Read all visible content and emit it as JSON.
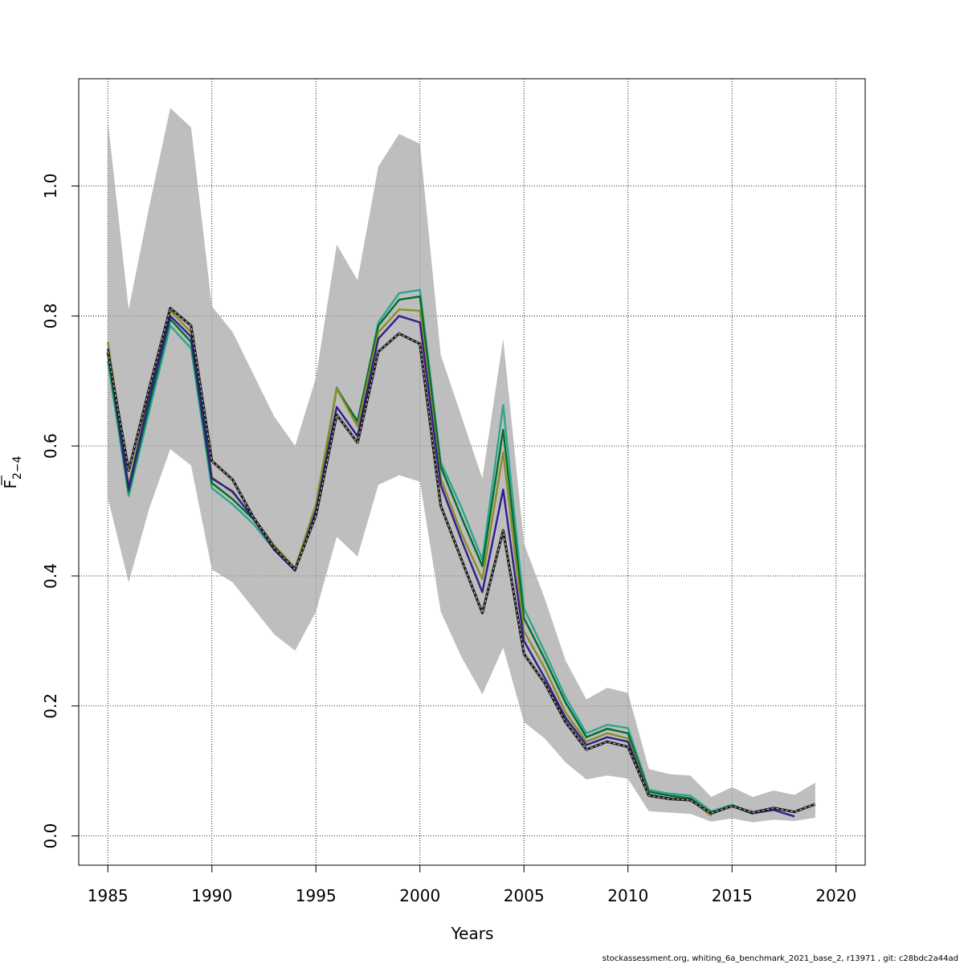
{
  "chart_data": {
    "type": "line",
    "xlabel": "Years",
    "ylabel_main": "F",
    "ylabel_sub": "2−4",
    "xlim": [
      1983.6,
      2021.4
    ],
    "ylim": [
      -0.045,
      1.165
    ],
    "x_ticks": [
      "1985",
      "1990",
      "1995",
      "2000",
      "2005",
      "2010",
      "2015",
      "2020"
    ],
    "y_ticks": [
      "0.0",
      "0.2",
      "0.4",
      "0.6",
      "0.8",
      "1.0"
    ],
    "grid": true,
    "band": {
      "x": [
        1985,
        1986,
        1987,
        1988,
        1989,
        1990,
        1991,
        1992,
        1993,
        1994,
        1995,
        1996,
        1997,
        1998,
        1999,
        2000,
        2001,
        2002,
        2003,
        2004,
        2005,
        2006,
        2007,
        2008,
        2009,
        2010,
        2011,
        2012,
        2013,
        2014,
        2015,
        2016,
        2017,
        2018,
        2019
      ],
      "upper": [
        1.1,
        0.81,
        0.97,
        1.12,
        1.09,
        0.815,
        0.775,
        0.71,
        0.645,
        0.6,
        0.705,
        0.91,
        0.855,
        1.03,
        1.08,
        1.065,
        0.74,
        0.645,
        0.55,
        0.765,
        0.45,
        0.365,
        0.27,
        0.21,
        0.228,
        0.22,
        0.103,
        0.095,
        0.093,
        0.06,
        0.075,
        0.06,
        0.07,
        0.063,
        0.082
      ],
      "lower": [
        0.52,
        0.39,
        0.505,
        0.595,
        0.57,
        0.41,
        0.39,
        0.35,
        0.31,
        0.285,
        0.345,
        0.46,
        0.43,
        0.54,
        0.555,
        0.545,
        0.345,
        0.275,
        0.218,
        0.29,
        0.175,
        0.15,
        0.113,
        0.087,
        0.093,
        0.088,
        0.038,
        0.036,
        0.034,
        0.022,
        0.027,
        0.021,
        0.025,
        0.023,
        0.028
      ],
      "color": "#bebebe"
    },
    "series": [
      {
        "color": "#2ca58d",
        "x": [
          1985,
          1986,
          1987,
          1988,
          1989,
          1990,
          1991,
          1992,
          1993,
          1994,
          1995,
          1996,
          1997,
          1998,
          1999,
          2000,
          2001,
          2002,
          2003,
          2004,
          2005,
          2006,
          2007,
          2008,
          2009,
          2010,
          2011,
          2012,
          2013,
          2014,
          2015,
          2016,
          2017
        ],
        "values": [
          0.73,
          0.523,
          0.655,
          0.785,
          0.75,
          0.535,
          0.51,
          0.48,
          0.44,
          0.41,
          0.5,
          0.69,
          0.635,
          0.79,
          0.835,
          0.84,
          0.575,
          0.505,
          0.425,
          0.663,
          0.35,
          0.283,
          0.213,
          0.158,
          0.171,
          0.166,
          0.071,
          0.065,
          0.062,
          0.038,
          0.048,
          0.035,
          0.04
        ],
        "dashed": false
      },
      {
        "color": "#006d2c",
        "x": [
          1985,
          1986,
          1987,
          1988,
          1989,
          1990,
          1991,
          1992,
          1993,
          1994,
          1995,
          1996,
          1997,
          1998,
          1999,
          2000,
          2001,
          2002,
          2003,
          2004,
          2005,
          2006,
          2007,
          2008,
          2009,
          2010,
          2011,
          2012,
          2013,
          2014,
          2015,
          2016
        ],
        "values": [
          0.742,
          0.53,
          0.665,
          0.795,
          0.76,
          0.543,
          0.518,
          0.487,
          0.443,
          0.41,
          0.505,
          0.688,
          0.638,
          0.785,
          0.825,
          0.83,
          0.568,
          0.49,
          0.415,
          0.625,
          0.335,
          0.272,
          0.205,
          0.152,
          0.165,
          0.158,
          0.068,
          0.062,
          0.058,
          0.034,
          0.046,
          0.034
        ],
        "dashed": false
      },
      {
        "color": "#8c8c2a",
        "x": [
          1985,
          1986,
          1987,
          1988,
          1989,
          1990,
          1991,
          1992,
          1993,
          1994,
          1995,
          1996,
          1997,
          1998,
          1999,
          2000,
          2001,
          2002,
          2003,
          2004,
          2005,
          2006,
          2007,
          2008,
          2009,
          2010,
          2011,
          2012,
          2013,
          2014
        ],
        "values": [
          0.76,
          0.54,
          0.68,
          0.808,
          0.775,
          0.552,
          0.528,
          0.49,
          0.447,
          0.412,
          0.51,
          0.688,
          0.63,
          0.775,
          0.81,
          0.808,
          0.55,
          0.465,
          0.395,
          0.59,
          0.315,
          0.258,
          0.19,
          0.145,
          0.158,
          0.15,
          0.064,
          0.058,
          0.056,
          0.031
        ],
        "dashed": false
      },
      {
        "color": "#2e1e8c",
        "x": [
          1985,
          1986,
          1987,
          1988,
          1989,
          1990,
          1991,
          1992,
          1993,
          1994,
          1995,
          1996,
          1997,
          1998,
          1999,
          2000,
          2001,
          2002,
          2003,
          2004,
          2005,
          2006,
          2007,
          2008,
          2009,
          2010,
          2011,
          2012,
          2013,
          2014,
          2015,
          2016,
          2017,
          2018
        ],
        "values": [
          0.75,
          0.535,
          0.675,
          0.8,
          0.768,
          0.55,
          0.53,
          0.488,
          0.44,
          0.408,
          0.5,
          0.66,
          0.615,
          0.765,
          0.8,
          0.79,
          0.54,
          0.455,
          0.375,
          0.533,
          0.3,
          0.243,
          0.182,
          0.14,
          0.152,
          0.145,
          0.063,
          0.058,
          0.055,
          0.035,
          0.046,
          0.035,
          0.04,
          0.03
        ],
        "dashed": false
      },
      {
        "color": "#1a1a1a",
        "x": [
          1985,
          1986,
          1987,
          1988,
          1989,
          1990,
          1991,
          1992,
          1993,
          1994,
          1995,
          1996,
          1997,
          1998,
          1999,
          2000,
          2001,
          2002,
          2003,
          2004,
          2005,
          2006,
          2007,
          2008,
          2009,
          2010,
          2011,
          2012,
          2013,
          2014,
          2015,
          2016,
          2017,
          2018,
          2019
        ],
        "values": [
          0.745,
          0.562,
          0.69,
          0.812,
          0.785,
          0.577,
          0.548,
          0.49,
          0.443,
          0.41,
          0.493,
          0.648,
          0.605,
          0.745,
          0.773,
          0.757,
          0.508,
          0.425,
          0.343,
          0.47,
          0.28,
          0.235,
          0.175,
          0.133,
          0.145,
          0.137,
          0.062,
          0.057,
          0.055,
          0.035,
          0.046,
          0.036,
          0.043,
          0.037,
          0.049
        ],
        "dashed": true
      }
    ]
  },
  "footer": "stockassessment.org, whiting_6a_benchmark_2021_base_2, r13971 , git: c28bdc2a44ad"
}
